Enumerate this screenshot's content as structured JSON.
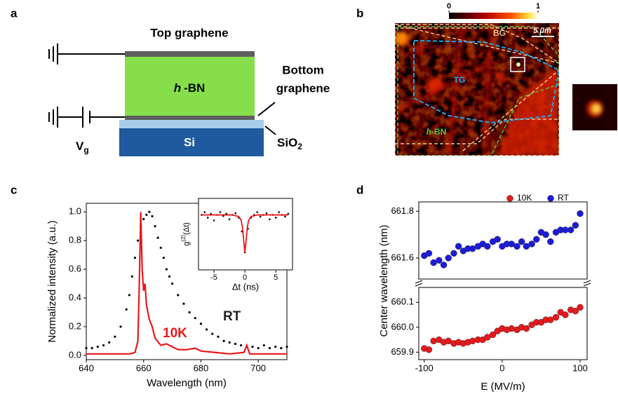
{
  "panel_labels": [
    "a",
    "b",
    "c",
    "d"
  ],
  "diagram": {
    "top_layer": "Top graphene",
    "middle_layer": [
      "h",
      "-BN"
    ],
    "bottom_layer": [
      "Bottom",
      "graphene"
    ],
    "oxide": [
      "SiO",
      "2"
    ],
    "substrate": "Si",
    "gate_voltage": [
      "V",
      "g"
    ]
  },
  "image": {
    "colorbar_ticks": [
      0,
      1
    ],
    "scale_bar": [
      "5",
      "μm"
    ],
    "regions": {
      "bg": "BG",
      "tg": "TG",
      "hbn": [
        "h",
        "-BN"
      ]
    }
  },
  "chart_data": [
    {
      "type": "line",
      "xlabel": "Wavelength (nm)",
      "ylabel": "Normalized intensity (a.u.)",
      "xlim": [
        640,
        710
      ],
      "ylim": [
        -0.03,
        1.06
      ],
      "xticks": [
        640,
        660,
        680,
        700
      ],
      "yticks": [
        {
          "value": 0,
          "label": "0.0"
        },
        0.2,
        0.4,
        0.6,
        0.8,
        {
          "value": 1,
          "label": "1.0"
        }
      ],
      "series": [
        {
          "name": "RT",
          "color": "#000000",
          "mode": "markers",
          "x": [
            640,
            642,
            644,
            646,
            648,
            650,
            652,
            654,
            655,
            656,
            657,
            658,
            659,
            660,
            661,
            662,
            663,
            664,
            665,
            666,
            667,
            668,
            669,
            670,
            672,
            674,
            676,
            678,
            680,
            682,
            684,
            686,
            688,
            690,
            692,
            694,
            696,
            698,
            700,
            702,
            704,
            706,
            708,
            710
          ],
          "values": [
            0.05,
            0.05,
            0.06,
            0.07,
            0.09,
            0.13,
            0.2,
            0.32,
            0.42,
            0.55,
            0.68,
            0.8,
            0.9,
            0.95,
            0.98,
            1.0,
            0.97,
            0.9,
            0.82,
            0.75,
            0.68,
            0.6,
            0.55,
            0.5,
            0.42,
            0.36,
            0.3,
            0.26,
            0.22,
            0.18,
            0.15,
            0.13,
            0.1,
            0.09,
            0.08,
            0.07,
            0.06,
            0.06,
            0.05,
            0.07,
            0.05,
            0.06,
            0.05,
            0.06
          ]
        },
        {
          "name": "10K",
          "color": "#e8181c",
          "mode": "lines",
          "x": [
            640,
            650,
            655,
            657,
            658,
            658.5,
            659,
            659.5,
            660,
            660.5,
            661,
            662,
            663,
            664,
            666,
            668,
            670,
            672,
            675,
            678,
            680,
            685,
            690,
            695,
            696,
            697,
            700,
            710
          ],
          "values": [
            0.01,
            0.01,
            0.01,
            0.02,
            0.1,
            0.5,
            1.0,
            0.6,
            0.45,
            0.5,
            0.35,
            0.25,
            0.2,
            0.12,
            0.07,
            0.08,
            0.06,
            0.04,
            0.04,
            0.05,
            0.03,
            0.02,
            0.01,
            0.02,
            0.07,
            0.01,
            0.01,
            0.01
          ]
        }
      ]
    },
    {
      "type": "line",
      "xlabel": "Δt (ns)",
      "ylabel": [
        "g",
        "(2)",
        "(Δt)"
      ],
      "xlim": [
        -7.5,
        7.7
      ],
      "ylim": [
        0,
        1.3
      ],
      "xticks": [
        -5,
        0,
        5
      ],
      "series": [
        {
          "color": "#000000",
          "mode": "markers",
          "x": [
            -7,
            -6.5,
            -6,
            -5.5,
            -5,
            -4.5,
            -4,
            -3.5,
            -3,
            -2.5,
            -2,
            -1.5,
            -1,
            -0.5,
            0,
            0.5,
            1,
            1.5,
            2,
            2.5,
            3,
            3.5,
            4,
            4.5,
            5,
            5.5,
            6,
            6.5,
            7
          ],
          "values": [
            1.0,
            1.05,
            0.95,
            1.02,
            0.9,
            1.0,
            1.05,
            0.98,
            1.02,
            0.92,
            1.0,
            1.03,
            0.95,
            0.7,
            0.32,
            0.75,
            0.95,
            1.0,
            1.05,
            0.97,
            1.0,
            1.03,
            0.92,
            1.0,
            0.95,
            1.05,
            1.0,
            0.97,
            1.02
          ]
        },
        {
          "color": "#e8181c",
          "mode": "lines",
          "x": [
            -7,
            -2,
            -1,
            -0.6,
            -0.4,
            -0.2,
            -0.1,
            0,
            0.1,
            0.2,
            0.4,
            0.6,
            1,
            2,
            7
          ],
          "values": [
            1,
            1,
            0.97,
            0.9,
            0.78,
            0.55,
            0.42,
            0.32,
            0.42,
            0.55,
            0.78,
            0.9,
            0.97,
            1,
            1
          ]
        }
      ]
    },
    {
      "type": "scatter",
      "xlabel": "E (MV/m)",
      "ylabel": "Center wavelength (nm)",
      "xlim": [
        -107,
        109
      ],
      "xticks": [
        -100,
        0,
        100
      ],
      "y_break": true,
      "ylim": [
        659.87,
        660.16
      ],
      "yticks": [
        659.9,
        {
          "value": 660,
          "label": "660.0"
        },
        660.1
      ],
      "y2lim": [
        661.51,
        661.84
      ],
      "y2ticks": [
        661.6,
        661.8
      ],
      "legend": "top-right",
      "x": [
        -100,
        -94,
        -88,
        -81,
        -75,
        -69,
        -62,
        -56,
        -50,
        -44,
        -38,
        -31,
        -25,
        -19,
        -12,
        -6,
        0,
        6,
        12,
        19,
        25,
        31,
        38,
        44,
        50,
        56,
        62,
        69,
        75,
        81,
        88,
        94,
        100
      ],
      "series": [
        {
          "name": "10K",
          "color": "#e8181c",
          "values": [
            659.915,
            659.91,
            659.945,
            659.95,
            659.94,
            659.945,
            659.935,
            659.94,
            659.935,
            659.94,
            659.945,
            659.95,
            659.95,
            659.96,
            659.97,
            659.985,
            659.995,
            659.99,
            659.995,
            659.99,
            660,
            659.995,
            660.01,
            660.02,
            660.02,
            660.03,
            660.03,
            660.04,
            660.06,
            660.05,
            660.07,
            660.065,
            660.08
          ]
        },
        {
          "name": "RT",
          "color": "#1c1cd8",
          "axis": "y2",
          "values": [
            661.61,
            661.62,
            661.58,
            661.59,
            661.57,
            661.6,
            661.62,
            661.65,
            661.63,
            661.64,
            661.64,
            661.65,
            661.66,
            661.65,
            661.67,
            661.68,
            661.65,
            661.66,
            661.66,
            661.65,
            661.67,
            661.65,
            661.66,
            661.68,
            661.71,
            661.7,
            661.67,
            661.71,
            661.72,
            661.72,
            661.72,
            661.74,
            661.79
          ]
        }
      ]
    }
  ]
}
